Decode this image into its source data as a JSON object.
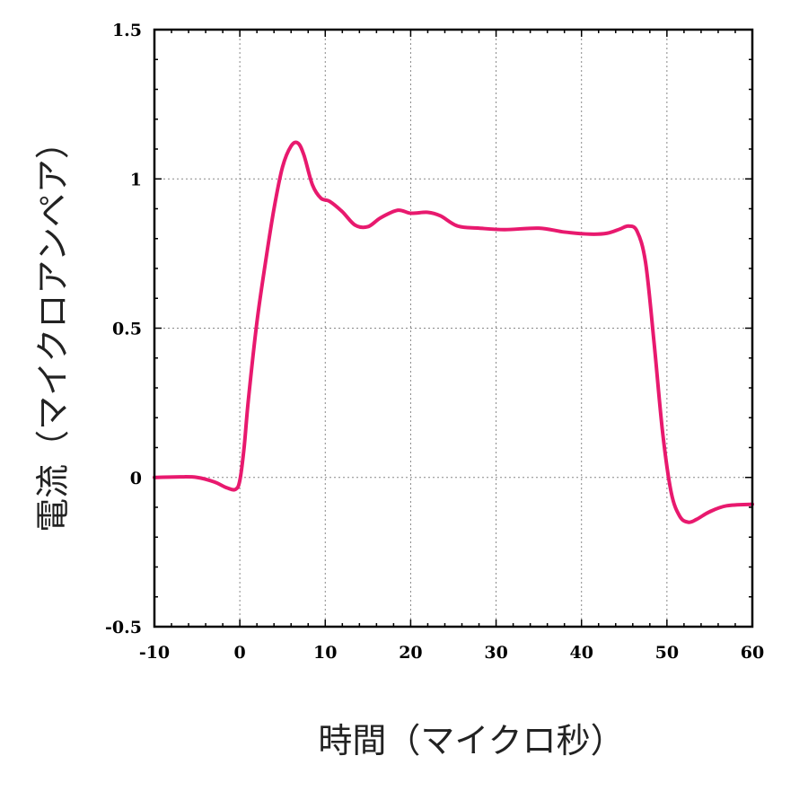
{
  "chart_data": {
    "type": "line",
    "xlabel": "時間（マイクロ秒）",
    "ylabel": "電流（マイクロアンペア）",
    "xlim": [
      -10,
      60
    ],
    "ylim": [
      -0.5,
      1.5
    ],
    "xticks": [
      -10,
      0,
      10,
      20,
      30,
      40,
      50,
      60
    ],
    "yticks": [
      -0.5,
      0,
      0.5,
      1,
      1.5
    ],
    "xtick_labels": [
      "-10",
      "0",
      "10",
      "20",
      "30",
      "40",
      "50",
      "60"
    ],
    "ytick_labels": [
      "-0.5",
      "0",
      "0.5",
      "1",
      "1.5"
    ],
    "grid": true,
    "series": [
      {
        "color": "#e8196e",
        "x": [
          -10,
          -7,
          -5,
          -3,
          -1.5,
          -0.5,
          0,
          0.5,
          1,
          2,
          3,
          4,
          5,
          6,
          6.8,
          7.5,
          8.5,
          9.5,
          10.5,
          12,
          13.5,
          15,
          16.5,
          18.5,
          20,
          22,
          23.5,
          25.5,
          28,
          31,
          35,
          38,
          41,
          43,
          44.5,
          45.5,
          46.5,
          47.5,
          48.5,
          49.5,
          50.5,
          51.5,
          52.5,
          53.5,
          55,
          57,
          60
        ],
        "y": [
          0.0,
          0.002,
          0.0,
          -0.015,
          -0.035,
          -0.04,
          -0.01,
          0.1,
          0.26,
          0.52,
          0.72,
          0.9,
          1.04,
          1.11,
          1.12,
          1.08,
          0.98,
          0.935,
          0.925,
          0.89,
          0.845,
          0.84,
          0.87,
          0.895,
          0.885,
          0.888,
          0.876,
          0.842,
          0.835,
          0.83,
          0.835,
          0.822,
          0.815,
          0.818,
          0.832,
          0.842,
          0.825,
          0.72,
          0.45,
          0.15,
          -0.05,
          -0.13,
          -0.15,
          -0.14,
          -0.115,
          -0.095,
          -0.09
        ]
      }
    ]
  }
}
